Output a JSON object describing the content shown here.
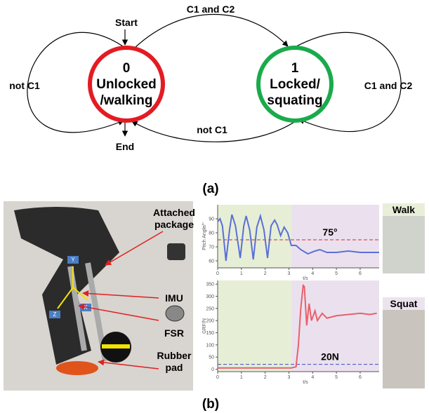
{
  "diagram": {
    "states": [
      {
        "id": "0",
        "label_1": "Unlocked",
        "label_2": "/walking"
      },
      {
        "id": "1",
        "label_1": "Locked/",
        "label_2": "squating"
      }
    ],
    "edges": {
      "top": "C1 and C2",
      "left_loop": "not C1",
      "right_loop": "C1 and C2",
      "bottom": "not C1"
    },
    "start": "Start",
    "end": "End",
    "panel_a": "(a)"
  },
  "photo": {
    "labels": {
      "package": [
        "Attached",
        "package"
      ],
      "imu": "IMU",
      "fsr": "FSR",
      "pad": [
        "Rubber",
        "pad"
      ]
    },
    "axes": {
      "y": "Y",
      "x": "X",
      "z": "Z"
    },
    "walk": "Walk",
    "squat": "Squat",
    "panel_b": "(b)"
  },
  "chart_data": [
    {
      "type": "line",
      "y_label": "Pitch Angle/°",
      "x_label": "t/s",
      "xlim": [
        0,
        6.8
      ],
      "xticks": [
        0,
        1,
        2,
        3,
        4,
        5,
        6
      ],
      "ylim": [
        55,
        100
      ],
      "yticks": [
        60,
        70,
        80,
        90
      ],
      "regions": [
        {
          "from": 0,
          "to": 3.1,
          "color": "#e6eed6"
        },
        {
          "from": 3.1,
          "to": 6.8,
          "color": "#ebe1ee"
        }
      ],
      "reference": {
        "value": 75,
        "label": "75°",
        "color": "#d62728"
      },
      "x": [
        0,
        0.1,
        0.2,
        0.35,
        0.5,
        0.6,
        0.75,
        0.95,
        1.1,
        1.2,
        1.35,
        1.5,
        1.65,
        1.8,
        1.95,
        2.1,
        2.25,
        2.4,
        2.5,
        2.65,
        2.8,
        2.95,
        3.1,
        3.3,
        3.5,
        3.8,
        4.1,
        4.3,
        4.6,
        5.0,
        5.5,
        6.0,
        6.8
      ],
      "series": [
        {
          "color": "#5b6fd6",
          "values": [
            88,
            90,
            85,
            60,
            82,
            93,
            85,
            62,
            85,
            92,
            82,
            61,
            84,
            92,
            82,
            62,
            85,
            89,
            86,
            78,
            84,
            80,
            71,
            71,
            68,
            65,
            67,
            68,
            66,
            66,
            67,
            66,
            66
          ]
        }
      ]
    },
    {
      "type": "line",
      "y_label": "GRF/N",
      "x_label": "t/s",
      "xlim": [
        0,
        6.8
      ],
      "xticks": [
        0,
        1,
        2,
        3,
        4,
        5,
        6
      ],
      "ylim": [
        -10,
        365
      ],
      "yticks": [
        0,
        50,
        100,
        150,
        200,
        250,
        300,
        350
      ],
      "regions": [
        {
          "from": 0,
          "to": 3.1,
          "color": "#e6eed6"
        },
        {
          "from": 3.1,
          "to": 6.8,
          "color": "#ebe1ee"
        }
      ],
      "reference": {
        "value": 20,
        "label": "20N",
        "color": "#3b4cc0"
      },
      "x": [
        0,
        1,
        2,
        3.1,
        3.3,
        3.4,
        3.5,
        3.6,
        3.65,
        3.75,
        3.85,
        3.95,
        4.1,
        4.2,
        4.4,
        4.6,
        5.0,
        5.5,
        6.0,
        6.4,
        6.7
      ],
      "series": [
        {
          "color": "#e8606a",
          "values": [
            5,
            5,
            5,
            5,
            10,
            100,
            250,
            345,
            340,
            180,
            270,
            200,
            240,
            200,
            230,
            210,
            220,
            225,
            230,
            225,
            230
          ]
        }
      ]
    }
  ]
}
